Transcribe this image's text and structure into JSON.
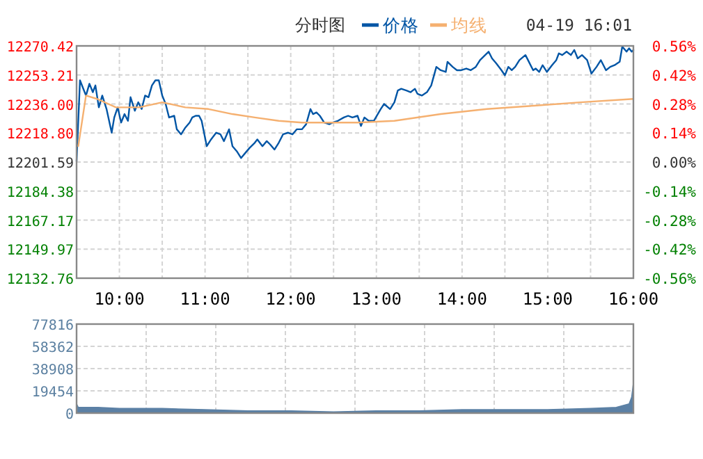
{
  "chart_data": [
    {
      "type": "line",
      "title": "分时图",
      "legend": "top",
      "grid": true,
      "annotations": [
        "04-19 16:01"
      ],
      "xlim": [
        9.5,
        16
      ],
      "xticks": [
        {
          "value": 10,
          "label": "10:00"
        },
        {
          "value": 10.5,
          "label": null
        },
        {
          "value": 11,
          "label": "11:00"
        },
        {
          "value": 11.5,
          "label": null
        },
        {
          "value": 12,
          "label": "12:00"
        },
        {
          "value": 12.5,
          "label": null
        },
        {
          "value": 13,
          "label": "13:00"
        },
        {
          "value": 13.5,
          "label": null
        },
        {
          "value": 14,
          "label": "14:00"
        },
        {
          "value": 14.5,
          "label": null
        },
        {
          "value": 15,
          "label": "15:00"
        },
        {
          "value": 15.5,
          "label": null
        },
        {
          "value": 16,
          "label": "16:00"
        }
      ],
      "ylim": [
        12132.76,
        12270.42
      ],
      "yticks": [
        12132.76,
        12149.97,
        12167.17,
        12184.38,
        12201.59,
        {
          "value": 12218.8,
          "label": "12218.80"
        },
        {
          "value": 12236,
          "label": "12236.00"
        },
        12253.21,
        12270.42
      ],
      "y2lim": [
        -0.56,
        0.56
      ],
      "y2ticks": [
        {
          "value": -0.56,
          "label": "-0.56%"
        },
        {
          "value": -0.42,
          "label": "-0.42%"
        },
        {
          "value": -0.28,
          "label": "-0.28%"
        },
        {
          "value": -0.14,
          "label": "-0.14%"
        },
        {
          "value": 0,
          "label": "0.00%"
        },
        {
          "value": 0.14,
          "label": "0.14%"
        },
        {
          "value": 0.28,
          "label": "0.28%"
        },
        {
          "value": 0.42,
          "label": "0.42%"
        },
        {
          "value": 0.56,
          "label": "0.56%"
        }
      ],
      "series": [
        {
          "name": "价格",
          "color": "#0055a5",
          "x": [
            9.5,
            9.54,
            9.61,
            9.65,
            9.69,
            9.72,
            9.76,
            9.8,
            9.85,
            9.91,
            9.94,
            9.98,
            10.02,
            10.06,
            10.1,
            10.13,
            10.18,
            10.22,
            10.26,
            10.3,
            10.34,
            10.38,
            10.42,
            10.46,
            10.5,
            10.54,
            10.58,
            10.64,
            10.67,
            10.72,
            10.77,
            10.82,
            10.85,
            10.89,
            10.93,
            10.96,
            11.02,
            11.07,
            11.13,
            11.18,
            11.22,
            11.28,
            11.32,
            11.37,
            11.42,
            11.47,
            11.52,
            11.58,
            11.61,
            11.67,
            11.72,
            11.76,
            11.81,
            11.86,
            11.91,
            11.97,
            12.02,
            12.07,
            12.13,
            12.18,
            12.23,
            12.26,
            12.3,
            12.34,
            12.39,
            12.45,
            12.49,
            12.55,
            12.62,
            12.67,
            12.72,
            12.78,
            12.82,
            12.86,
            12.91,
            12.97,
            13.05,
            13.09,
            13.16,
            13.21,
            13.25,
            13.29,
            13.35,
            13.4,
            13.45,
            13.48,
            13.53,
            13.59,
            13.64,
            13.7,
            13.75,
            13.81,
            13.83,
            13.89,
            13.94,
            13.99,
            14.05,
            14.1,
            14.16,
            14.21,
            14.27,
            14.31,
            14.35,
            14.4,
            14.46,
            14.5,
            14.54,
            14.58,
            14.62,
            14.67,
            14.74,
            14.78,
            14.83,
            14.86,
            14.9,
            14.94,
            14.99,
            15.05,
            15.1,
            15.13,
            15.17,
            15.22,
            15.27,
            15.31,
            15.35,
            15.4,
            15.46,
            15.51,
            15.57,
            15.62,
            15.68,
            15.73,
            15.78,
            15.84,
            15.87,
            15.92,
            15.95,
            15.98,
            16.0
          ],
          "values": [
            12202,
            12250,
            12241,
            12248,
            12243,
            12247,
            12234,
            12241,
            12233,
            12219,
            12228,
            12234,
            12225,
            12230,
            12226,
            12240,
            12232,
            12237,
            12233,
            12241,
            12240,
            12247,
            12250,
            12250,
            12241,
            12236,
            12228,
            12229,
            12221,
            12218,
            12222,
            12225,
            12228,
            12229,
            12229,
            12226,
            12211,
            12215,
            12219,
            12218,
            12214,
            12221,
            12211,
            12208,
            12204,
            12207,
            12210,
            12213,
            12215,
            12211,
            12214,
            12212,
            12209,
            12213,
            12218,
            12219,
            12218,
            12221,
            12221,
            12224,
            12233,
            12230,
            12231,
            12229,
            12225,
            12224,
            12225,
            12226,
            12228,
            12229,
            12228,
            12229,
            12223,
            12228,
            12226,
            12226,
            12233,
            12236,
            12233,
            12237,
            12244,
            12245,
            12244,
            12243,
            12245,
            12242,
            12241,
            12243,
            12247,
            12258,
            12256,
            12255,
            12261,
            12258,
            12256,
            12256,
            12257,
            12256,
            12258,
            12262,
            12265,
            12267,
            12263,
            12260,
            12256,
            12253,
            12258,
            12256,
            12258,
            12262,
            12265,
            12261,
            12256,
            12257,
            12255,
            12259,
            12255,
            12259,
            12262,
            12266,
            12265,
            12267,
            12265,
            12268,
            12263,
            12265,
            12262,
            12254,
            12258,
            12262,
            12256,
            12258,
            12259,
            12261,
            12270,
            12267,
            12269,
            12267,
            12268
          ]
        },
        {
          "name": "均线",
          "color": "#f5b070",
          "x": [
            9.52,
            9.61,
            9.74,
            9.96,
            10.23,
            10.5,
            10.77,
            11.04,
            11.32,
            11.58,
            11.86,
            12.13,
            12.78,
            13.21,
            13.75,
            14.29,
            14.84,
            15.38,
            16.0
          ],
          "values": [
            12211,
            12241,
            12239,
            12234,
            12234,
            12237,
            12234,
            12233,
            12230,
            12228,
            12226,
            12225,
            12225,
            12226,
            12230,
            12233,
            12235,
            12237,
            12239
          ]
        }
      ]
    },
    {
      "type": "area",
      "grid": true,
      "tick_labels": "y",
      "xlim": [
        9.5,
        16
      ],
      "xticks": [
        {
          "value": 10.3125,
          "label": null
        },
        {
          "value": 11.125,
          "label": null
        },
        {
          "value": 11.9375,
          "label": null
        },
        {
          "value": 12.75,
          "label": null
        },
        {
          "value": 13.5625,
          "label": null
        },
        {
          "value": 14.375,
          "label": null
        },
        {
          "value": 15.1875,
          "label": null
        }
      ],
      "ylim": [
        0,
        77816
      ],
      "yticks": [
        0,
        19454,
        38908,
        58362,
        77816
      ],
      "series": [
        {
          "color": "#5b80a5",
          "x": [
            9.5,
            9.52,
            9.75,
            10,
            10.5,
            11,
            11.5,
            12,
            12.5,
            13,
            13.5,
            14,
            14.5,
            15,
            15.5,
            15.8,
            15.95,
            15.98,
            16
          ],
          "values": [
            8000,
            5000,
            5000,
            4000,
            4000,
            3000,
            2000,
            2000,
            1000,
            2000,
            2000,
            3000,
            3000,
            3000,
            4000,
            5000,
            8000,
            14000,
            26000
          ]
        }
      ]
    }
  ]
}
